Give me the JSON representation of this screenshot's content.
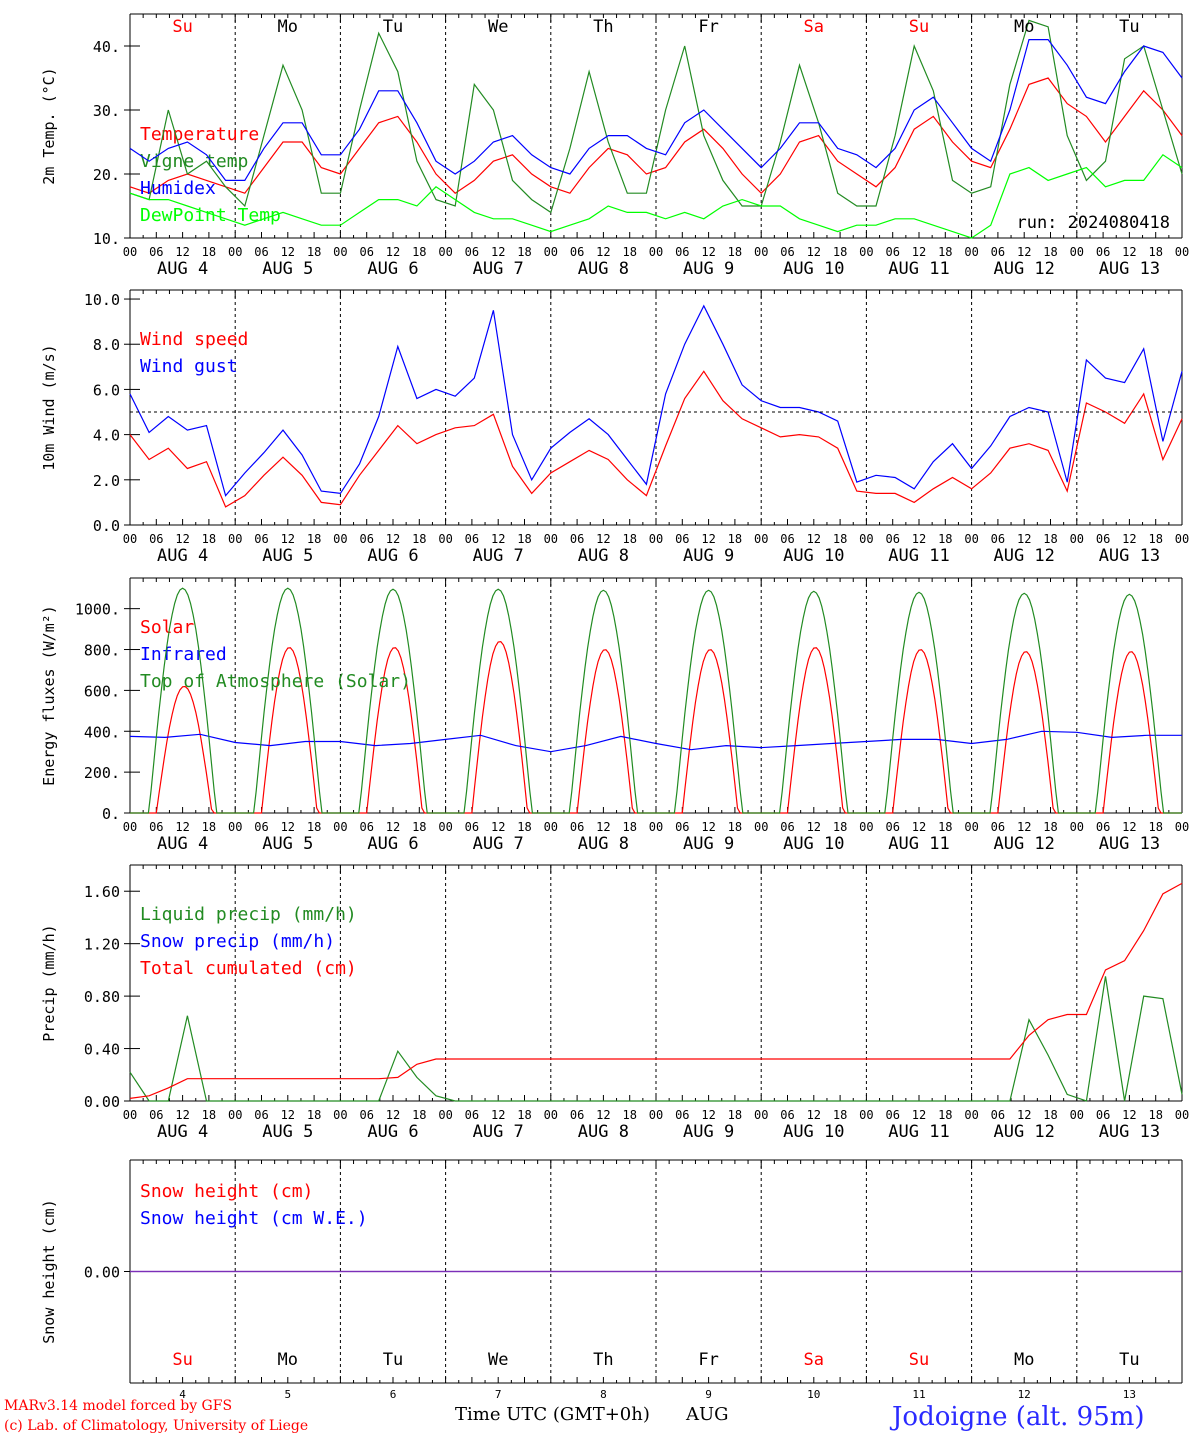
{
  "days": [
    "AUG 4",
    "AUG 5",
    "AUG 6",
    "AUG 7",
    "AUG 8",
    "AUG 9",
    "AUG 10",
    "AUG 11",
    "AUG 12",
    "AUG 13"
  ],
  "weekdays": [
    "Su",
    "Mo",
    "Tu",
    "We",
    "Th",
    "Fr",
    "Sa",
    "Su",
    "Mo",
    "Tu"
  ],
  "weekday_colors": [
    "#ff0000",
    "#000000",
    "#000000",
    "#000000",
    "#000000",
    "#000000",
    "#ff0000",
    "#ff0000",
    "#000000",
    "#000000"
  ],
  "hour_ticks": [
    "00",
    "06",
    "12",
    "18"
  ],
  "bottom_day_numbers": [
    "4",
    "5",
    "6",
    "7",
    "8",
    "9",
    "10",
    "11",
    "12",
    "13"
  ],
  "footer": {
    "model": "MARv3.14 model forced by GFS",
    "copyright": "(c) Lab. of Climatology, University of Liege",
    "time_axis": "Time UTC (GMT+0h)",
    "month": "AUG",
    "station": "Jodoigne (alt. 95m)"
  },
  "chart_data": [
    {
      "type": "line",
      "ylabel": "2m Temp. (°C)",
      "ylim": [
        10,
        45
      ],
      "yticks": [
        "10.",
        "20.",
        "30.",
        "40."
      ],
      "run_label": "run: 2024080418",
      "series": [
        {
          "name": "Temperature",
          "color": "#ff0000",
          "values": [
            18,
            17,
            19,
            20,
            19,
            18,
            17,
            21,
            25,
            25,
            21,
            20,
            24,
            28,
            29,
            25,
            20,
            17,
            19,
            22,
            23,
            20,
            18,
            17,
            21,
            24,
            23,
            20,
            21,
            25,
            27,
            24,
            20,
            17,
            20,
            25,
            26,
            22,
            20,
            18,
            21,
            27,
            29,
            25,
            22,
            21,
            27,
            34,
            35,
            31,
            29,
            25,
            29,
            33,
            30,
            26
          ]
        },
        {
          "name": "Vigne temp",
          "color": "#228b22",
          "values": [
            17,
            16,
            30,
            20,
            22,
            18,
            15,
            26,
            37,
            30,
            17,
            17,
            30,
            42,
            36,
            22,
            16,
            15,
            34,
            30,
            19,
            16,
            14,
            24,
            36,
            25,
            17,
            17,
            30,
            40,
            26,
            19,
            15,
            15,
            25,
            37,
            28,
            17,
            15,
            15,
            26,
            40,
            33,
            19,
            17,
            18,
            34,
            44,
            43,
            26,
            19,
            22,
            38,
            40,
            30,
            20
          ]
        },
        {
          "name": "Humidex",
          "color": "#0000ff",
          "values": [
            24,
            22,
            24,
            25,
            23,
            19,
            19,
            24,
            28,
            28,
            23,
            23,
            27,
            33,
            33,
            28,
            22,
            20,
            22,
            25,
            26,
            23,
            21,
            20,
            24,
            26,
            26,
            24,
            23,
            28,
            30,
            27,
            24,
            21,
            24,
            28,
            28,
            24,
            23,
            21,
            24,
            30,
            32,
            28,
            24,
            22,
            30,
            41,
            41,
            37,
            32,
            31,
            36,
            40,
            39,
            35
          ]
        },
        {
          "name": "DewPoint Temp",
          "color": "#00ff00",
          "values": [
            17,
            16,
            16,
            15,
            14,
            13,
            12,
            13,
            14,
            13,
            12,
            12,
            14,
            16,
            16,
            15,
            18,
            16,
            14,
            13,
            13,
            12,
            11,
            12,
            13,
            15,
            14,
            14,
            13,
            14,
            13,
            15,
            16,
            15,
            15,
            13,
            12,
            11,
            12,
            12,
            13,
            13,
            12,
            11,
            10,
            12,
            20,
            21,
            19,
            20,
            21,
            18,
            19,
            19,
            23,
            21
          ]
        }
      ]
    },
    {
      "type": "line",
      "ylabel": "10m Wind (m/s)",
      "ylim": [
        0,
        10
      ],
      "yticks": [
        "0.0",
        "2.0",
        "4.0",
        "6.0",
        "8.0",
        "10.0"
      ],
      "series": [
        {
          "name": "Wind speed",
          "color": "#ff0000",
          "values": [
            4.0,
            2.9,
            3.4,
            2.5,
            2.8,
            0.8,
            1.3,
            2.2,
            3.0,
            2.2,
            1.0,
            0.9,
            2.2,
            3.3,
            4.4,
            3.6,
            4.0,
            4.3,
            4.4,
            4.9,
            2.6,
            1.4,
            2.3,
            2.8,
            3.3,
            2.9,
            2.0,
            1.3,
            3.5,
            5.6,
            6.8,
            5.5,
            4.7,
            4.3,
            3.9,
            4.0,
            3.9,
            3.4,
            1.5,
            1.4,
            1.4,
            1.0,
            1.6,
            2.1,
            1.6,
            2.3,
            3.4,
            3.6,
            3.3,
            1.5,
            5.4,
            5.0,
            4.5,
            5.8,
            2.9,
            4.7
          ]
        },
        {
          "name": "Wind gust",
          "color": "#0000ff",
          "values": [
            5.8,
            4.1,
            4.8,
            4.2,
            4.4,
            1.3,
            2.3,
            3.2,
            4.2,
            3.1,
            1.5,
            1.4,
            2.7,
            4.8,
            7.9,
            5.6,
            6.0,
            5.7,
            6.5,
            9.5,
            4.0,
            2.0,
            3.4,
            4.1,
            4.7,
            4.0,
            2.9,
            1.8,
            5.8,
            8.0,
            9.7,
            8.0,
            6.2,
            5.5,
            5.2,
            5.2,
            5.0,
            4.6,
            1.9,
            2.2,
            2.1,
            1.6,
            2.8,
            3.6,
            2.5,
            3.5,
            4.8,
            5.2,
            5.0,
            1.9,
            7.3,
            6.5,
            6.3,
            7.8,
            3.7,
            6.8
          ]
        }
      ],
      "reference_line": 5.0
    },
    {
      "type": "line",
      "ylabel": "Energy fluxes (W/m²)",
      "ylim": [
        0,
        1100
      ],
      "yticks": [
        "0.",
        "200.",
        "400.",
        "600.",
        "800.",
        "1000."
      ],
      "series": [
        {
          "name": "Solar",
          "color": "#ff0000",
          "peaks": [
            620,
            810,
            810,
            840,
            800,
            800,
            810,
            800,
            790,
            790
          ]
        },
        {
          "name": "Infrared",
          "color": "#0000ff",
          "values": [
            375,
            370,
            385,
            345,
            330,
            350,
            350,
            330,
            340,
            360,
            380,
            330,
            300,
            330,
            375,
            340,
            310,
            330,
            320,
            330,
            340,
            350,
            360,
            360,
            340,
            360,
            400,
            395,
            370,
            380,
            380
          ]
        },
        {
          "name": "Top of Atmosphere (Solar)",
          "color": "#228b22",
          "peaks": [
            1100,
            1100,
            1095,
            1095,
            1090,
            1090,
            1085,
            1080,
            1075,
            1070
          ]
        }
      ]
    },
    {
      "type": "line",
      "ylabel": "Precip (mm/h)",
      "ylim": [
        0,
        1.8
      ],
      "yticks": [
        "0.00",
        "0.40",
        "0.80",
        "1.20",
        "1.60"
      ],
      "series": [
        {
          "name": "Liquid precip (mm/h)",
          "color": "#228b22",
          "values": [
            0.22,
            0.0,
            0.0,
            0.65,
            0.0,
            0.0,
            0.0,
            0.0,
            0.0,
            0.0,
            0.0,
            0.0,
            0.0,
            0.0,
            0.38,
            0.18,
            0.04,
            0.0,
            0.0,
            0.0,
            0.0,
            0.0,
            0.0,
            0.0,
            0.0,
            0.0,
            0.0,
            0.0,
            0.0,
            0.0,
            0.0,
            0.0,
            0.0,
            0.0,
            0.0,
            0.0,
            0.0,
            0.0,
            0.0,
            0.0,
            0.0,
            0.0,
            0.0,
            0.0,
            0.0,
            0.0,
            0.0,
            0.62,
            0.35,
            0.05,
            0.0,
            0.95,
            0.0,
            0.8,
            0.78,
            0.05
          ]
        },
        {
          "name": "Snow precip (mm/h)",
          "color": "#0000ff",
          "values": []
        },
        {
          "name": "Total cumulated (cm)",
          "color": "#ff0000",
          "values": [
            0.02,
            0.04,
            0.1,
            0.17,
            0.17,
            0.17,
            0.17,
            0.17,
            0.17,
            0.17,
            0.17,
            0.17,
            0.17,
            0.17,
            0.18,
            0.28,
            0.32,
            0.32,
            0.32,
            0.32,
            0.32,
            0.32,
            0.32,
            0.32,
            0.32,
            0.32,
            0.32,
            0.32,
            0.32,
            0.32,
            0.32,
            0.32,
            0.32,
            0.32,
            0.32,
            0.32,
            0.32,
            0.32,
            0.32,
            0.32,
            0.32,
            0.32,
            0.32,
            0.32,
            0.32,
            0.32,
            0.32,
            0.5,
            0.62,
            0.66,
            0.66,
            1.0,
            1.07,
            1.3,
            1.58,
            1.66
          ]
        }
      ]
    },
    {
      "type": "line",
      "ylabel": "Snow height (cm)",
      "yticks": [
        "0.00"
      ],
      "series": [
        {
          "name": "Snow height (cm)",
          "color": "#ff0000",
          "values": [
            0
          ]
        },
        {
          "name": "Snow height (cm W.E.)",
          "color": "#0000ff",
          "values": [
            0
          ]
        }
      ]
    }
  ]
}
